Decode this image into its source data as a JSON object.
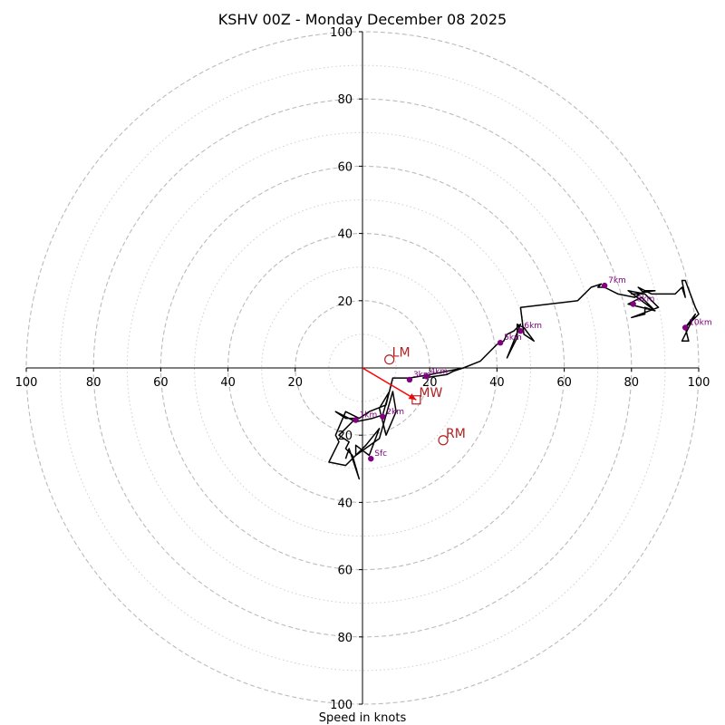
{
  "chart_data": {
    "type": "hodograph",
    "title": "KSHV 00Z - Monday December 08 2025",
    "xlabel": "Speed in knots",
    "range": [
      -100,
      100
    ],
    "dashed_rings": [
      20,
      40,
      60,
      80,
      100
    ],
    "dotted_rings": [
      10,
      30,
      50,
      70,
      90
    ],
    "x_ticks": [
      {
        "value": -100,
        "label": "100"
      },
      {
        "value": -80,
        "label": "80"
      },
      {
        "value": -60,
        "label": "60"
      },
      {
        "value": -40,
        "label": "40"
      },
      {
        "value": -20,
        "label": "20"
      },
      {
        "value": 20,
        "label": "20"
      },
      {
        "value": 40,
        "label": "40"
      },
      {
        "value": 60,
        "label": "60"
      },
      {
        "value": 80,
        "label": "80"
      },
      {
        "value": 100,
        "label": "100"
      }
    ],
    "y_ticks": [
      {
        "value": 100,
        "label": "100"
      },
      {
        "value": 80,
        "label": "80"
      },
      {
        "value": 60,
        "label": "60"
      },
      {
        "value": 40,
        "label": "40"
      },
      {
        "value": 20,
        "label": "20"
      },
      {
        "value": -20,
        "label": "20"
      },
      {
        "value": -40,
        "label": "40"
      },
      {
        "value": -60,
        "label": "60"
      },
      {
        "value": -80,
        "label": "80"
      },
      {
        "value": -100,
        "label": "100"
      }
    ],
    "trace": [
      [
        -5,
        -27
      ],
      [
        -4,
        -24
      ],
      [
        -1,
        -33
      ],
      [
        -3,
        -26
      ],
      [
        -5,
        -24
      ],
      [
        -4,
        -22
      ],
      [
        -7,
        -20
      ],
      [
        -5,
        -18
      ],
      [
        -2,
        -15
      ],
      [
        -5,
        -15
      ],
      [
        -8,
        -13
      ],
      [
        -2,
        -16
      ],
      [
        3,
        -15
      ],
      [
        6,
        -14
      ],
      [
        8,
        -7
      ],
      [
        5,
        -12
      ],
      [
        7,
        -20
      ],
      [
        10,
        -13
      ],
      [
        9,
        -7
      ],
      [
        5,
        -21
      ],
      [
        -2,
        -26
      ],
      [
        -2,
        -23
      ],
      [
        2,
        -26
      ],
      [
        5,
        -18
      ],
      [
        1,
        -23
      ],
      [
        -5,
        -29
      ],
      [
        -10,
        -28
      ],
      [
        -7,
        -22
      ],
      [
        -8,
        -20
      ],
      [
        -5,
        -13
      ],
      [
        -1,
        -15
      ],
      [
        2,
        -13
      ],
      [
        7,
        -11
      ],
      [
        9,
        -3
      ],
      [
        14,
        -3
      ],
      [
        20,
        -2
      ],
      [
        18,
        -3
      ],
      [
        25,
        -2
      ],
      [
        27,
        -1
      ],
      [
        30,
        0
      ],
      [
        20,
        -2
      ],
      [
        30,
        0
      ],
      [
        35,
        2
      ],
      [
        38,
        5
      ],
      [
        40,
        7
      ],
      [
        42,
        8
      ],
      [
        43,
        10
      ],
      [
        45,
        11
      ],
      [
        47,
        13
      ],
      [
        43,
        3
      ],
      [
        44,
        5
      ],
      [
        46,
        9
      ],
      [
        46,
        13
      ],
      [
        48,
        12
      ],
      [
        51,
        8
      ],
      [
        48,
        10
      ],
      [
        47,
        18
      ],
      [
        64,
        20
      ],
      [
        68,
        24
      ],
      [
        71,
        25
      ],
      [
        70,
        24
      ],
      [
        72,
        24
      ],
      [
        76,
        22
      ],
      [
        81,
        21
      ],
      [
        84,
        23
      ],
      [
        87,
        23
      ],
      [
        80,
        22
      ],
      [
        84,
        22
      ],
      [
        79,
        23
      ],
      [
        83,
        20
      ],
      [
        87,
        17
      ],
      [
        83,
        21
      ],
      [
        79,
        19
      ],
      [
        87,
        17
      ],
      [
        84,
        18
      ],
      [
        84,
        16
      ],
      [
        80,
        15
      ],
      [
        88,
        18
      ],
      [
        84,
        22
      ],
      [
        82,
        24
      ],
      [
        86,
        22
      ],
      [
        93,
        22
      ],
      [
        95,
        24
      ],
      [
        96,
        21
      ],
      [
        95,
        26
      ],
      [
        96,
        26
      ],
      [
        99,
        18
      ],
      [
        100,
        16
      ],
      [
        96,
        12
      ],
      [
        97,
        8
      ],
      [
        95,
        8
      ],
      [
        99,
        16
      ],
      [
        96,
        12
      ]
    ],
    "height_markers": [
      {
        "label": "Sfc",
        "u": 2.5,
        "v": -27
      },
      {
        "label": "1km",
        "u": -2,
        "v": -15.5
      },
      {
        "label": "2km",
        "u": 6,
        "v": -14.5
      },
      {
        "label": "3km",
        "u": 14,
        "v": -3.5
      },
      {
        "label": "4km",
        "u": 19,
        "v": -2.5
      },
      {
        "label": "5km",
        "u": 41,
        "v": 7.5
      },
      {
        "label": "6km",
        "u": 47,
        "v": 11
      },
      {
        "label": "7km",
        "u": 72,
        "v": 24.5
      },
      {
        "label": "8km",
        "u": 80.5,
        "v": 19
      },
      {
        "label": "10km",
        "u": 96,
        "v": 12
      }
    ],
    "storm_motion": [
      {
        "label": "LM",
        "u": 8,
        "v": 2.5,
        "marker": "circle"
      },
      {
        "label": "RM",
        "u": 24,
        "v": -21.5,
        "marker": "circle"
      },
      {
        "label": "MW",
        "u": 16,
        "v": -9.5,
        "marker": "square"
      }
    ],
    "shear_vector": {
      "from": [
        0,
        0
      ],
      "to": [
        16,
        -9.5
      ]
    },
    "colors": {
      "trace": "#000000",
      "height_marker": "#800080",
      "storm_motion": "#b22222",
      "shear_vector": "#ff0000",
      "rings": "#bbbbbb",
      "axes": "#000000"
    }
  }
}
